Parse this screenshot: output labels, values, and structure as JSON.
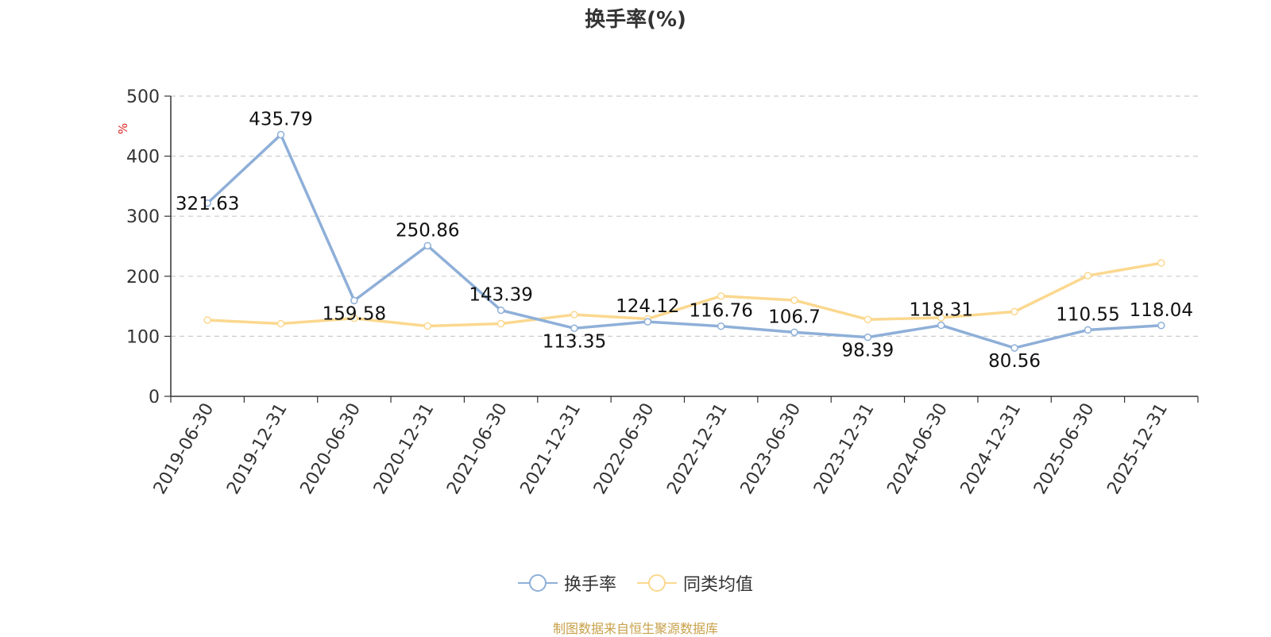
{
  "chart_data": {
    "type": "line",
    "title": "换手率(%)",
    "ylabel": "%",
    "xlabel": "",
    "categories": [
      "2019-06-30",
      "2019-12-31",
      "2020-06-30",
      "2020-12-31",
      "2021-06-30",
      "2021-12-31",
      "2022-06-30",
      "2022-12-31",
      "2023-06-30",
      "2023-12-31",
      "2024-06-30",
      "2024-12-31",
      "2025-06-30",
      "2025-12-31"
    ],
    "ylim": [
      0,
      500
    ],
    "yticks": [
      0,
      100,
      200,
      300,
      400,
      500
    ],
    "grid": true,
    "legend_position": "bottom",
    "series": [
      {
        "name": "换手率",
        "color": "#8eafd8",
        "values": [
          321.63,
          435.79,
          159.58,
          250.86,
          143.39,
          113.35,
          124.12,
          116.76,
          106.7,
          98.39,
          118.31,
          80.56,
          110.55,
          118.04
        ],
        "labels": [
          "321.63",
          "435.79",
          "159.58",
          "250.86",
          "143.39",
          "113.35",
          "124.12",
          "116.76",
          "106.7",
          "98.39",
          "118.31",
          "80.56",
          "110.55",
          "118.04"
        ]
      },
      {
        "name": "同类均值",
        "color": "#fbd88f",
        "values": [
          127,
          121,
          130,
          117,
          121,
          136,
          129,
          167,
          160,
          128,
          131,
          141,
          201,
          222
        ]
      }
    ]
  },
  "source": "制图数据来自恒生聚源数据库"
}
